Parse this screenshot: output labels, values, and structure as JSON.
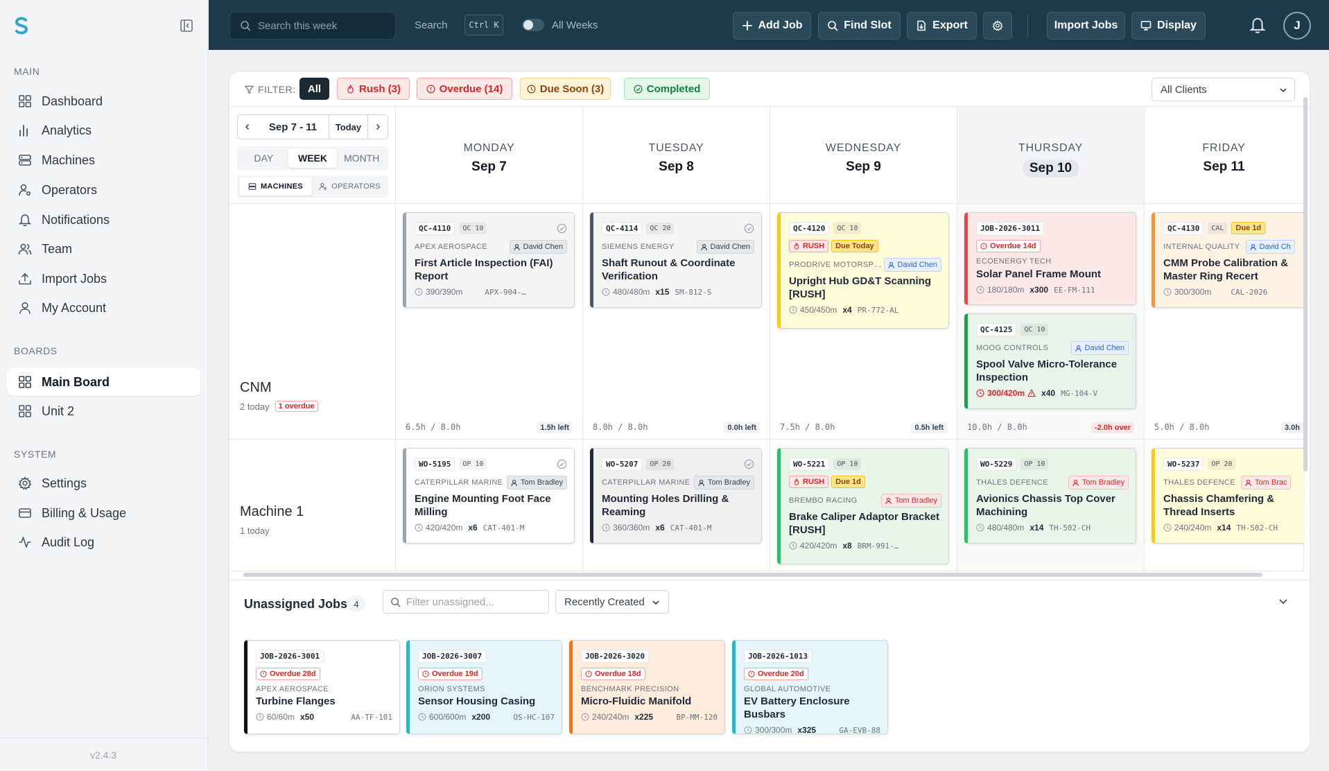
{
  "sidebar": {
    "sections": [
      {
        "title": "MAIN",
        "items": [
          {
            "label": "Dashboard",
            "icon": "grid-icon"
          },
          {
            "label": "Analytics",
            "icon": "bar-chart-icon"
          },
          {
            "label": "Machines",
            "icon": "server-icon"
          },
          {
            "label": "Operators",
            "icon": "user-cog-icon"
          },
          {
            "label": "Notifications",
            "icon": "bell-icon"
          },
          {
            "label": "Team",
            "icon": "users-icon"
          },
          {
            "label": "Import Jobs",
            "icon": "upload-icon"
          },
          {
            "label": "My Account",
            "icon": "user-icon"
          }
        ]
      },
      {
        "title": "BOARDS",
        "items": [
          {
            "label": "Main Board",
            "icon": "grid-icon",
            "active": true
          },
          {
            "label": "Unit 2",
            "icon": "grid-icon"
          }
        ]
      },
      {
        "title": "SYSTEM",
        "items": [
          {
            "label": "Settings",
            "icon": "gear-icon"
          },
          {
            "label": "Billing & Usage",
            "icon": "credit-card-icon"
          },
          {
            "label": "Audit Log",
            "icon": "activity-icon"
          }
        ]
      }
    ],
    "version": "v2.4.3"
  },
  "topbar": {
    "search_placeholder": "Search this week",
    "search_label": "Search",
    "shortcut": "Ctrl K",
    "all_weeks": "All Weeks",
    "add_job": "Add Job",
    "find_slot": "Find Slot",
    "export": "Export",
    "import_jobs": "Import Jobs",
    "display": "Display",
    "avatar_initial": "J"
  },
  "filters": {
    "label": "FILTER:",
    "all": "All",
    "rush": "Rush (3)",
    "overdue": "Overdue (14)",
    "due_soon": "Due Soon (3)",
    "completed": "Completed",
    "clients_select": "All Clients"
  },
  "controls": {
    "range": "Sep 7 - 11",
    "today": "Today",
    "views": [
      "DAY",
      "WEEK",
      "MONTH"
    ],
    "active_view": "WEEK",
    "groupings": [
      "MACHINES",
      "OPERATORS"
    ],
    "active_grouping": "MACHINES"
  },
  "days": [
    {
      "name": "MONDAY",
      "date": "Sep 7"
    },
    {
      "name": "TUESDAY",
      "date": "Sep 8"
    },
    {
      "name": "WEDNESDAY",
      "date": "Sep 9"
    },
    {
      "name": "THURSDAY",
      "date": "Sep 10",
      "today": true
    },
    {
      "name": "FRIDAY",
      "date": "Sep 11"
    }
  ],
  "rows": [
    {
      "name": "CNM",
      "sub": "2 today",
      "overdue": "1 overdue",
      "capacity": [
        {
          "used": "6.5h / 8.0h",
          "left": "1.5h left"
        },
        {
          "used": "8.0h / 8.0h",
          "left": "0.0h left"
        },
        {
          "used": "7.5h / 8.0h",
          "left": "0.5h left"
        },
        {
          "used": "10.0h / 8.0h",
          "left": "-2.0h over",
          "over": true
        },
        {
          "used": "5.0h / 8.0h",
          "left": "3.0h"
        }
      ]
    },
    {
      "name": "Machine 1",
      "sub": "1 today"
    }
  ],
  "jobs": [
    {
      "id": "QC-4110",
      "op": "QC 10",
      "client": "APEX AEROSPACE",
      "operator": "David Chen",
      "title": "First Article Inspection (FAI) Report",
      "time": "390/390m",
      "qty": "",
      "part": "APX-904-…",
      "done": true
    },
    {
      "id": "QC-4114",
      "op": "QC 20",
      "client": "SIEMENS ENERGY",
      "operator": "David Chen",
      "title": "Shaft Runout & Coordinate Verification",
      "time": "480/480m",
      "qty": "x15",
      "part": "SM-812-S",
      "done": true
    },
    {
      "id": "QC-4120",
      "op": "QC 10",
      "rush": "RUSH",
      "due": "Due Today",
      "client": "PRODRIVE MOTORSP…",
      "operator": "David Chen",
      "title": "Upright Hub GD&T Scanning [RUSH]",
      "time": "450/450m",
      "qty": "x4",
      "part": "PR-772-AL"
    },
    {
      "id": "JOB-2026-3011",
      "overdue": "Overdue 14d",
      "client": "ECOENERGY TECH",
      "title": "Solar Panel Frame Mount",
      "time": "180/180m",
      "qty": "x300",
      "part": "EE-FM-111"
    },
    {
      "id": "QC-4125",
      "op": "QC 10",
      "client": "MOOG CONTROLS",
      "operator": "David Chen",
      "title": "Spool Valve Micro-Tolerance Inspection",
      "time": "300/420m",
      "qty": "x40",
      "part": "MG-104-V"
    },
    {
      "id": "QC-4130",
      "op": "CAL",
      "due": "Due 1d",
      "client": "INTERNAL QUALITY",
      "operator": "David Ch",
      "title": "CMM Probe Calibration & Master Ring Recert",
      "time": "300/300m",
      "qty": "",
      "part": "CAL-2026"
    },
    {
      "id": "WO-5195",
      "op": "OP 10",
      "client": "CATERPILLAR MARINE",
      "operator": "Tom Bradley",
      "title": "Engine Mounting Foot Face Milling",
      "time": "420/420m",
      "qty": "x6",
      "part": "CAT-401-M",
      "done": true
    },
    {
      "id": "WO-5207",
      "op": "OP 20",
      "client": "CATERPILLAR MARINE",
      "operator": "Tom Bradley",
      "title": "Mounting Holes Drilling & Reaming",
      "time": "360/360m",
      "qty": "x6",
      "part": "CAT-401-M",
      "done": true
    },
    {
      "id": "WO-5221",
      "op": "OP 10",
      "rush": "RUSH",
      "due": "Due 1d",
      "client": "BREMBO RACING",
      "operator": "Tom Bradley",
      "title": "Brake Caliper Adaptor Bracket [RUSH]",
      "time": "420/420m",
      "qty": "x8",
      "part": "BRM-991-…"
    },
    {
      "id": "WO-5229",
      "op": "OP 10",
      "client": "THALES DEFENCE",
      "operator": "Tom Bradley",
      "title": "Avionics Chassis Top Cover Machining",
      "time": "480/480m",
      "qty": "x14",
      "part": "TH-502-CH"
    },
    {
      "id": "WO-5237",
      "op": "OP 20",
      "client": "THALES DEFENCE",
      "operator": "Tom Brac",
      "title": "Chassis Chamfering & Thread Inserts",
      "time": "240/240m",
      "qty": "x14",
      "part": "TH-502-CH"
    }
  ],
  "unassigned": {
    "title": "Unassigned Jobs",
    "count": "4",
    "filter_placeholder": "Filter unassigned...",
    "sort": "Recently Created",
    "jobs": [
      {
        "id": "JOB-2026-3001",
        "overdue": "Overdue 28d",
        "client": "APEX AEROSPACE",
        "title": "Turbine Flanges",
        "time": "60/60m",
        "qty": "x50",
        "part": "AA-TF-101"
      },
      {
        "id": "JOB-2026-3007",
        "overdue": "Overdue 19d",
        "client": "ORION SYSTEMS",
        "title": "Sensor Housing Casing",
        "time": "600/600m",
        "qty": "x200",
        "part": "OS-HC-107"
      },
      {
        "id": "JOB-2026-3020",
        "overdue": "Overdue 18d",
        "client": "BENCHMARK PRECISION",
        "title": "Micro-Fluidic Manifold",
        "time": "240/240m",
        "qty": "x225",
        "part": "BP-MM-120"
      },
      {
        "id": "JOB-2026-1013",
        "overdue": "Overdue 20d",
        "client": "GLOBAL AUTOMOTIVE",
        "title": "EV Battery Enclosure Busbars",
        "time": "300/300m",
        "qty": "x325",
        "part": "GA-EVB-88"
      }
    ]
  },
  "colors": {
    "topbar": "#1c3a4b",
    "rush_yellow": "#fef9c3",
    "green": "#e8f6ea",
    "red": "#fde8e8",
    "cyan": "#e4f6fb",
    "orange": "#fdebdc"
  }
}
